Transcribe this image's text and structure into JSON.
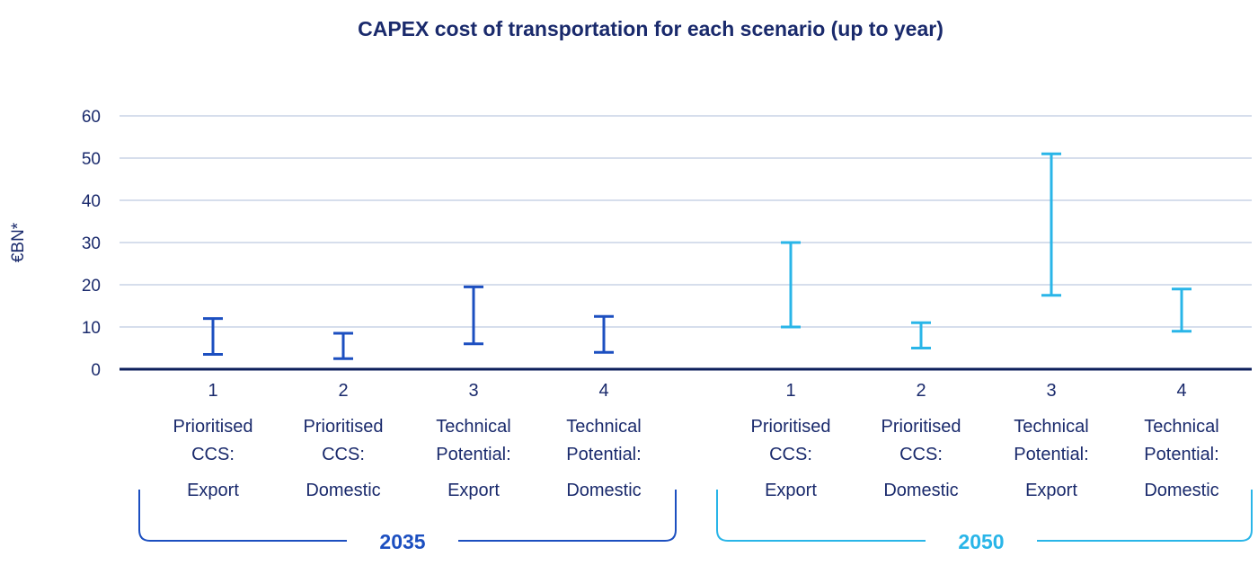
{
  "chart_data": {
    "type": "range",
    "title": "CAPEX cost of transportation for each scenario (up to year)",
    "ylabel": "€BN*",
    "xlabel": "",
    "ylim": [
      0,
      60
    ],
    "yticks": [
      0,
      10,
      20,
      30,
      40,
      50,
      60
    ],
    "grid": true,
    "groups": [
      {
        "name": "2035",
        "color": "#1c4fc0",
        "categories": [
          {
            "number": "1",
            "lines": [
              "Prioritised",
              "CCS:",
              "Export"
            ],
            "low": 3.5,
            "high": 12
          },
          {
            "number": "2",
            "lines": [
              "Prioritised",
              "CCS:",
              "Domestic"
            ],
            "low": 2.5,
            "high": 8.5
          },
          {
            "number": "3",
            "lines": [
              "Technical",
              "Potential:",
              "Export"
            ],
            "low": 6,
            "high": 19.5
          },
          {
            "number": "4",
            "lines": [
              "Technical",
              "Potential:",
              "Domestic"
            ],
            "low": 4,
            "high": 12.5
          }
        ]
      },
      {
        "name": "2050",
        "color": "#29b5e8",
        "categories": [
          {
            "number": "1",
            "lines": [
              "Prioritised",
              "CCS:",
              "Export"
            ],
            "low": 10,
            "high": 30
          },
          {
            "number": "2",
            "lines": [
              "Prioritised",
              "CCS:",
              "Domestic"
            ],
            "low": 5,
            "high": 11
          },
          {
            "number": "3",
            "lines": [
              "Technical",
              "Potential:",
              "Export"
            ],
            "low": 17.5,
            "high": 51
          },
          {
            "number": "4",
            "lines": [
              "Technical",
              "Potential:",
              "Domestic"
            ],
            "low": 9,
            "high": 19
          }
        ]
      }
    ]
  },
  "colors": {
    "text": "#1a2a6c",
    "grid": "#c9d3e6",
    "axis": "#0d1f5c"
  }
}
